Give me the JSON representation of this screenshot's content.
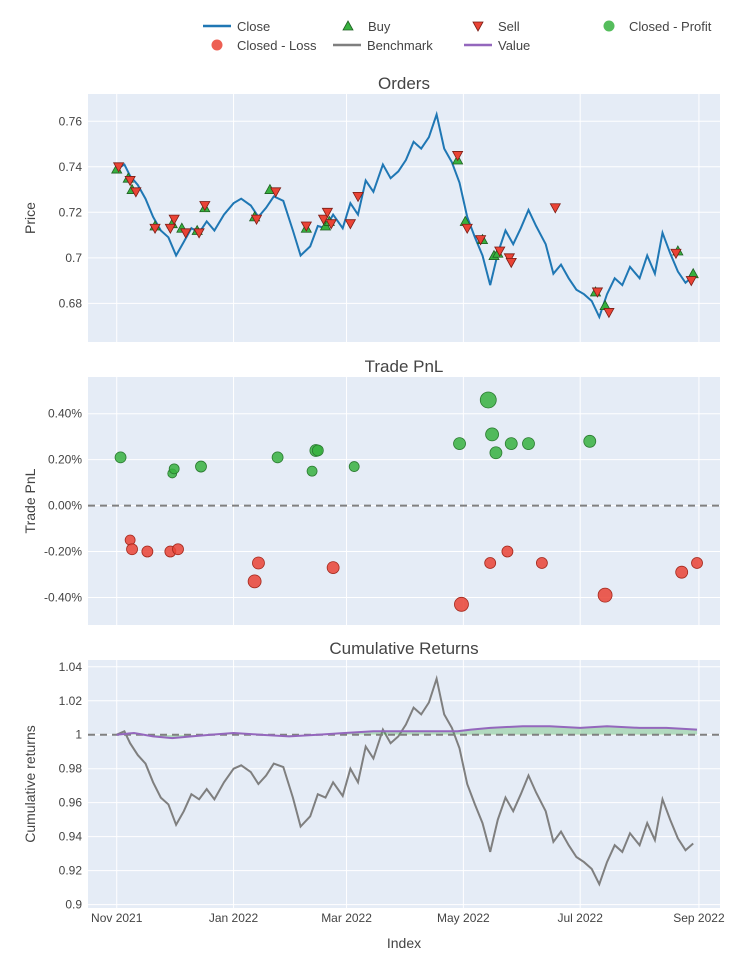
{
  "legend": {
    "entries": [
      {
        "name": "Close",
        "symbol": "line",
        "color": "#1f77b4"
      },
      {
        "name": "Buy",
        "symbol": "triangle-up",
        "color": "#37b13f"
      },
      {
        "name": "Sell",
        "symbol": "triangle-down",
        "color": "#ea4335"
      },
      {
        "name": "Closed - Profit",
        "symbol": "circle",
        "color": "#37b13f"
      },
      {
        "name": "Closed - Loss",
        "symbol": "circle",
        "color": "#ea4335"
      },
      {
        "name": "Benchmark",
        "symbol": "line",
        "color": "#7f7f7f"
      },
      {
        "name": "Value",
        "symbol": "line",
        "color": "#9467bd"
      }
    ]
  },
  "x_axis": {
    "label": "Index",
    "ticks": [
      "Nov 2021",
      "Jan 2022",
      "Mar 2022",
      "May 2022",
      "Jul 2022",
      "Sep 2022"
    ],
    "tick_dates": [
      "2021-11-01",
      "2022-01-01",
      "2022-03-01",
      "2022-05-01",
      "2022-07-01",
      "2022-09-01"
    ],
    "range": [
      "2021-10-17",
      "2022-09-12"
    ]
  },
  "chart_data": [
    {
      "type": "line",
      "title": "Orders",
      "ylabel": "Price",
      "ylim": [
        0.663,
        0.772
      ],
      "yticks": [
        0.68,
        0.7,
        0.72,
        0.74,
        0.76
      ],
      "ytick_labels": [
        "0.68",
        "0.7",
        "0.72",
        "0.74",
        "0.76"
      ],
      "grid": true,
      "series": [
        {
          "name": "Close",
          "color": "#1f77b4",
          "x": [
            "2021-11-01",
            "2021-11-05",
            "2021-11-08",
            "2021-11-12",
            "2021-11-16",
            "2021-11-20",
            "2021-11-24",
            "2021-11-28",
            "2021-12-02",
            "2021-12-06",
            "2021-12-10",
            "2021-12-14",
            "2021-12-18",
            "2021-12-22",
            "2021-12-27",
            "2022-01-01",
            "2022-01-05",
            "2022-01-10",
            "2022-01-14",
            "2022-01-18",
            "2022-01-22",
            "2022-01-27",
            "2022-02-01",
            "2022-02-05",
            "2022-02-10",
            "2022-02-14",
            "2022-02-18",
            "2022-02-22",
            "2022-02-27",
            "2022-03-03",
            "2022-03-07",
            "2022-03-11",
            "2022-03-15",
            "2022-03-20",
            "2022-03-24",
            "2022-03-28",
            "2022-04-01",
            "2022-04-05",
            "2022-04-09",
            "2022-04-13",
            "2022-04-17",
            "2022-04-21",
            "2022-04-25",
            "2022-04-29",
            "2022-05-03",
            "2022-05-07",
            "2022-05-11",
            "2022-05-15",
            "2022-05-19",
            "2022-05-23",
            "2022-05-27",
            "2022-05-31",
            "2022-06-04",
            "2022-06-08",
            "2022-06-13",
            "2022-06-17",
            "2022-06-21",
            "2022-06-25",
            "2022-06-29",
            "2022-07-03",
            "2022-07-07",
            "2022-07-11",
            "2022-07-15",
            "2022-07-19",
            "2022-07-23",
            "2022-07-27",
            "2022-08-01",
            "2022-08-05",
            "2022-08-09",
            "2022-08-13",
            "2022-08-17",
            "2022-08-21",
            "2022-08-25",
            "2022-08-29"
          ],
          "values": [
            0.739,
            0.741,
            0.736,
            0.732,
            0.726,
            0.718,
            0.712,
            0.709,
            0.701,
            0.707,
            0.713,
            0.711,
            0.716,
            0.712,
            0.719,
            0.724,
            0.726,
            0.723,
            0.718,
            0.722,
            0.727,
            0.725,
            0.712,
            0.701,
            0.705,
            0.714,
            0.713,
            0.719,
            0.713,
            0.724,
            0.719,
            0.734,
            0.729,
            0.741,
            0.735,
            0.738,
            0.743,
            0.751,
            0.748,
            0.753,
            0.763,
            0.748,
            0.742,
            0.733,
            0.718,
            0.709,
            0.701,
            0.688,
            0.702,
            0.712,
            0.706,
            0.713,
            0.721,
            0.714,
            0.706,
            0.693,
            0.697,
            0.691,
            0.686,
            0.684,
            0.681,
            0.674,
            0.684,
            0.691,
            0.688,
            0.696,
            0.691,
            0.701,
            0.693,
            0.711,
            0.702,
            0.694,
            0.689,
            0.692
          ]
        },
        {
          "name": "Buy",
          "marker": "triangle-up",
          "color": "#37b13f",
          "x": [
            "2021-11-01",
            "2021-11-07",
            "2021-11-09",
            "2021-11-21",
            "2021-11-30",
            "2021-12-05",
            "2021-12-13",
            "2021-12-17",
            "2022-01-12",
            "2022-01-20",
            "2022-02-08",
            "2022-02-18",
            "2022-02-20",
            "2022-04-28",
            "2022-05-02",
            "2022-05-11",
            "2022-05-17",
            "2022-05-19",
            "2022-07-09",
            "2022-07-14",
            "2022-08-21",
            "2022-08-29"
          ],
          "values": [
            0.739,
            0.735,
            0.73,
            0.714,
            0.715,
            0.713,
            0.712,
            0.722,
            0.718,
            0.73,
            0.713,
            0.714,
            0.716,
            0.743,
            0.716,
            0.708,
            0.701,
            0.702,
            0.685,
            0.679,
            0.703,
            0.693
          ]
        },
        {
          "name": "Sell",
          "marker": "triangle-down",
          "color": "#ea4335",
          "x": [
            "2021-11-02",
            "2021-11-08",
            "2021-11-11",
            "2021-11-21",
            "2021-11-29",
            "2021-12-01",
            "2021-12-07",
            "2021-12-14",
            "2021-12-17",
            "2022-01-13",
            "2022-01-23",
            "2022-02-08",
            "2022-02-17",
            "2022-02-19",
            "2022-02-21",
            "2022-03-03",
            "2022-03-07",
            "2022-04-28",
            "2022-05-03",
            "2022-05-10",
            "2022-05-20",
            "2022-05-25",
            "2022-05-26",
            "2022-06-18",
            "2022-07-10",
            "2022-07-16",
            "2022-08-20",
            "2022-08-28"
          ],
          "values": [
            0.74,
            0.734,
            0.729,
            0.713,
            0.713,
            0.717,
            0.711,
            0.711,
            0.723,
            0.717,
            0.729,
            0.714,
            0.717,
            0.72,
            0.715,
            0.715,
            0.727,
            0.745,
            0.713,
            0.708,
            0.703,
            0.7,
            0.698,
            0.722,
            0.685,
            0.676,
            0.702,
            0.69
          ]
        }
      ]
    },
    {
      "type": "scatter",
      "title": "Trade PnL",
      "ylabel": "Trade PnL",
      "ylim": [
        -0.52,
        0.56
      ],
      "yticks": [
        -0.4,
        -0.2,
        0,
        0.2,
        0.4
      ],
      "ytick_labels": [
        "-0.40%",
        "-0.20%",
        "0.00%",
        "0.20%",
        "0.40%"
      ],
      "grid": true,
      "zero_line": true,
      "series": [
        {
          "name": "Closed - Profit",
          "color": "#37b13f",
          "x": [
            "2021-11-03",
            "2021-11-30",
            "2021-12-01",
            "2021-12-15",
            "2022-01-24",
            "2022-02-11",
            "2022-02-13",
            "2022-02-14",
            "2022-03-05",
            "2022-04-29",
            "2022-05-14",
            "2022-05-16",
            "2022-05-18",
            "2022-05-26",
            "2022-06-04",
            "2022-07-06"
          ],
          "values": [
            0.21,
            0.14,
            0.16,
            0.17,
            0.21,
            0.15,
            0.24,
            0.24,
            0.17,
            0.27,
            0.46,
            0.31,
            0.23,
            0.27,
            0.27,
            0.28
          ],
          "sizes": [
            9,
            7,
            8,
            9,
            9,
            8,
            10,
            9,
            8,
            10,
            14,
            11,
            10,
            10,
            10,
            10
          ]
        },
        {
          "name": "Closed - Loss",
          "color": "#ea4335",
          "x": [
            "2021-11-08",
            "2021-11-09",
            "2021-11-17",
            "2021-11-29",
            "2021-12-03",
            "2022-01-12",
            "2022-01-14",
            "2022-02-22",
            "2022-04-30",
            "2022-05-15",
            "2022-05-24",
            "2022-06-11",
            "2022-07-14",
            "2022-08-23",
            "2022-08-31"
          ],
          "values": [
            -0.15,
            -0.19,
            -0.2,
            -0.2,
            -0.19,
            -0.33,
            -0.25,
            -0.27,
            -0.43,
            -0.25,
            -0.2,
            -0.25,
            -0.39,
            -0.29,
            -0.25
          ],
          "sizes": [
            8,
            9,
            9,
            9,
            9,
            11,
            10,
            10,
            12,
            9,
            9,
            9,
            12,
            10,
            9
          ]
        }
      ]
    },
    {
      "type": "line",
      "title": "Cumulative Returns",
      "ylabel": "Cumulative returns",
      "ylim": [
        0.898,
        1.044
      ],
      "yticks": [
        0.9,
        0.92,
        0.94,
        0.96,
        0.98,
        1.0,
        1.02,
        1.04
      ],
      "ytick_labels": [
        "0.9",
        "0.92",
        "0.94",
        "0.96",
        "0.98",
        "1",
        "1.02",
        "1.04"
      ],
      "grid": true,
      "baseline": 1.0,
      "series": [
        {
          "name": "Benchmark",
          "color": "#7f7f7f",
          "x": [
            "2021-11-01",
            "2021-11-05",
            "2021-11-08",
            "2021-11-12",
            "2021-11-16",
            "2021-11-20",
            "2021-11-24",
            "2021-11-28",
            "2021-12-02",
            "2021-12-06",
            "2021-12-10",
            "2021-12-14",
            "2021-12-18",
            "2021-12-22",
            "2021-12-27",
            "2022-01-01",
            "2022-01-05",
            "2022-01-10",
            "2022-01-14",
            "2022-01-18",
            "2022-01-22",
            "2022-01-27",
            "2022-02-01",
            "2022-02-05",
            "2022-02-10",
            "2022-02-14",
            "2022-02-18",
            "2022-02-22",
            "2022-02-27",
            "2022-03-03",
            "2022-03-07",
            "2022-03-11",
            "2022-03-15",
            "2022-03-20",
            "2022-03-24",
            "2022-03-28",
            "2022-04-01",
            "2022-04-05",
            "2022-04-09",
            "2022-04-13",
            "2022-04-17",
            "2022-04-21",
            "2022-04-25",
            "2022-04-29",
            "2022-05-03",
            "2022-05-07",
            "2022-05-11",
            "2022-05-15",
            "2022-05-19",
            "2022-05-23",
            "2022-05-27",
            "2022-05-31",
            "2022-06-04",
            "2022-06-08",
            "2022-06-13",
            "2022-06-17",
            "2022-06-21",
            "2022-06-25",
            "2022-06-29",
            "2022-07-03",
            "2022-07-07",
            "2022-07-11",
            "2022-07-15",
            "2022-07-19",
            "2022-07-23",
            "2022-07-27",
            "2022-08-01",
            "2022-08-05",
            "2022-08-09",
            "2022-08-13",
            "2022-08-17",
            "2022-08-21",
            "2022-08-25",
            "2022-08-29"
          ],
          "values": [
            1.0,
            1.002,
            0.995,
            0.988,
            0.983,
            0.972,
            0.963,
            0.959,
            0.947,
            0.955,
            0.965,
            0.962,
            0.968,
            0.962,
            0.972,
            0.98,
            0.982,
            0.978,
            0.971,
            0.976,
            0.983,
            0.981,
            0.963,
            0.946,
            0.952,
            0.965,
            0.963,
            0.972,
            0.964,
            0.98,
            0.972,
            0.993,
            0.986,
            1.003,
            0.995,
            0.999,
            1.006,
            1.016,
            1.012,
            1.019,
            1.033,
            1.012,
            1.004,
            0.992,
            0.971,
            0.959,
            0.948,
            0.931,
            0.95,
            0.963,
            0.955,
            0.965,
            0.976,
            0.966,
            0.955,
            0.937,
            0.943,
            0.935,
            0.928,
            0.925,
            0.921,
            0.912,
            0.925,
            0.935,
            0.931,
            0.942,
            0.935,
            0.948,
            0.938,
            0.962,
            0.95,
            0.939,
            0.932,
            0.936
          ]
        },
        {
          "name": "Value",
          "color": "#9467bd",
          "x": [
            "2021-11-01",
            "2021-11-10",
            "2021-11-20",
            "2021-11-30",
            "2021-12-10",
            "2021-12-20",
            "2022-01-01",
            "2022-01-15",
            "2022-01-30",
            "2022-02-14",
            "2022-02-28",
            "2022-03-15",
            "2022-04-01",
            "2022-04-15",
            "2022-04-28",
            "2022-05-05",
            "2022-05-15",
            "2022-06-01",
            "2022-06-15",
            "2022-07-01",
            "2022-07-15",
            "2022-08-01",
            "2022-08-15",
            "2022-08-31"
          ],
          "values": [
            1.0,
            1.001,
            0.999,
            0.998,
            0.999,
            1.0,
            1.001,
            1.0,
            0.999,
            1.0,
            1.001,
            1.002,
            1.002,
            1.002,
            1.002,
            1.003,
            1.004,
            1.005,
            1.005,
            1.004,
            1.005,
            1.004,
            1.004,
            1.003
          ]
        }
      ]
    }
  ]
}
